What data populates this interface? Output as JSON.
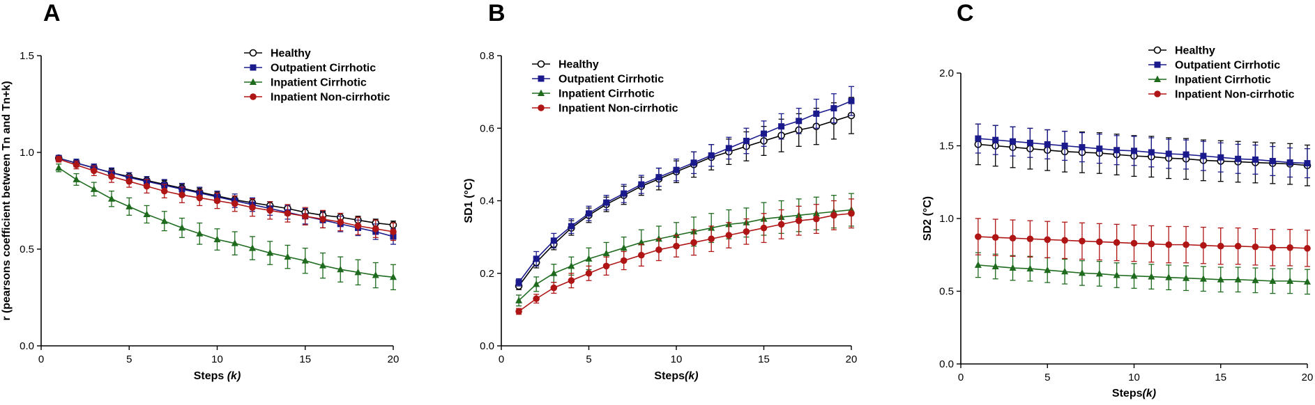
{
  "colors": {
    "Healthy": "#000000",
    "Outpatient Cirrhotic": "#1a1a8c",
    "Inpatient Cirrhotic": "#1e6b1e",
    "Inpatient Non-cirrhotic": "#b01515"
  },
  "chart_data": [
    {
      "type": "line",
      "panel": "A",
      "xlabel": "Steps",
      "xlabel_italic": "(k)",
      "ylabel": "r (pearsons coefficient between Tn and Tn+k)",
      "xlim": [
        0,
        20
      ],
      "ylim": [
        0,
        1.5
      ],
      "xticks": [
        0,
        5,
        10,
        15,
        20
      ],
      "yticks": [
        "0.0",
        "0.5",
        "1.0",
        "1.5"
      ],
      "legend": "top-right",
      "x": [
        1,
        2,
        3,
        4,
        5,
        6,
        7,
        8,
        9,
        10,
        11,
        12,
        13,
        14,
        15,
        16,
        17,
        18,
        19,
        20
      ],
      "series": [
        {
          "name": "Healthy",
          "marker": "open-circle",
          "values": [
            0.97,
            0.945,
            0.92,
            0.895,
            0.875,
            0.855,
            0.835,
            0.815,
            0.795,
            0.775,
            0.755,
            0.74,
            0.725,
            0.71,
            0.69,
            0.675,
            0.665,
            0.65,
            0.635,
            0.625
          ],
          "err": [
            0.015,
            0.02,
            0.02,
            0.02,
            0.02,
            0.02,
            0.02,
            0.02,
            0.02,
            0.02,
            0.02,
            0.02,
            0.02,
            0.02,
            0.02,
            0.02,
            0.02,
            0.02,
            0.02,
            0.02
          ]
        },
        {
          "name": "Outpatient Cirrhotic",
          "marker": "square",
          "values": [
            0.97,
            0.945,
            0.92,
            0.895,
            0.87,
            0.85,
            0.83,
            0.81,
            0.79,
            0.77,
            0.75,
            0.73,
            0.71,
            0.69,
            0.67,
            0.65,
            0.63,
            0.61,
            0.59,
            0.565
          ],
          "err": [
            0.015,
            0.02,
            0.02,
            0.025,
            0.025,
            0.025,
            0.03,
            0.03,
            0.03,
            0.03,
            0.035,
            0.035,
            0.035,
            0.035,
            0.04,
            0.04,
            0.04,
            0.04,
            0.04,
            0.04
          ]
        },
        {
          "name": "Inpatient Cirrhotic",
          "marker": "triangle",
          "values": [
            0.92,
            0.86,
            0.81,
            0.76,
            0.72,
            0.68,
            0.645,
            0.61,
            0.58,
            0.55,
            0.53,
            0.505,
            0.48,
            0.46,
            0.44,
            0.415,
            0.395,
            0.38,
            0.365,
            0.355
          ],
          "err": [
            0.02,
            0.03,
            0.035,
            0.04,
            0.045,
            0.045,
            0.05,
            0.05,
            0.055,
            0.055,
            0.06,
            0.06,
            0.06,
            0.06,
            0.065,
            0.065,
            0.065,
            0.065,
            0.065,
            0.065
          ]
        },
        {
          "name": "Inpatient Non-cirrhotic",
          "marker": "circle",
          "values": [
            0.965,
            0.935,
            0.905,
            0.875,
            0.85,
            0.825,
            0.8,
            0.78,
            0.765,
            0.75,
            0.735,
            0.715,
            0.7,
            0.685,
            0.67,
            0.655,
            0.64,
            0.62,
            0.605,
            0.59
          ],
          "err": [
            0.015,
            0.02,
            0.025,
            0.03,
            0.03,
            0.035,
            0.035,
            0.04,
            0.04,
            0.04,
            0.04,
            0.045,
            0.045,
            0.045,
            0.045,
            0.045,
            0.045,
            0.045,
            0.045,
            0.045
          ]
        }
      ]
    },
    {
      "type": "line",
      "panel": "B",
      "xlabel": "Steps",
      "xlabel_italic": "(k)",
      "ylabel": "SD1 (°C)",
      "xlim": [
        0,
        20
      ],
      "ylim": [
        0,
        0.8
      ],
      "xticks": [
        0,
        5,
        10,
        15,
        20
      ],
      "yticks": [
        "0.0",
        "0.2",
        "0.4",
        "0.6",
        "0.8"
      ],
      "legend": "top-left",
      "x": [
        1,
        2,
        3,
        4,
        5,
        6,
        7,
        8,
        9,
        10,
        11,
        12,
        13,
        14,
        15,
        16,
        17,
        18,
        19,
        20
      ],
      "series": [
        {
          "name": "Healthy",
          "marker": "open-circle",
          "values": [
            0.165,
            0.23,
            0.28,
            0.325,
            0.36,
            0.39,
            0.415,
            0.44,
            0.46,
            0.48,
            0.5,
            0.52,
            0.535,
            0.55,
            0.565,
            0.58,
            0.595,
            0.605,
            0.62,
            0.635
          ],
          "err": [
            0.01,
            0.015,
            0.015,
            0.02,
            0.02,
            0.02,
            0.025,
            0.025,
            0.03,
            0.03,
            0.035,
            0.035,
            0.035,
            0.04,
            0.04,
            0.045,
            0.045,
            0.05,
            0.05,
            0.05
          ]
        },
        {
          "name": "Outpatient Cirrhotic",
          "marker": "square",
          "values": [
            0.175,
            0.24,
            0.29,
            0.33,
            0.365,
            0.395,
            0.42,
            0.445,
            0.465,
            0.485,
            0.505,
            0.525,
            0.545,
            0.565,
            0.585,
            0.605,
            0.62,
            0.64,
            0.655,
            0.675
          ],
          "err": [
            0.01,
            0.02,
            0.02,
            0.02,
            0.02,
            0.02,
            0.025,
            0.025,
            0.025,
            0.03,
            0.03,
            0.03,
            0.03,
            0.035,
            0.035,
            0.035,
            0.035,
            0.04,
            0.04,
            0.04
          ]
        },
        {
          "name": "Inpatient Cirrhotic",
          "marker": "triangle",
          "values": [
            0.125,
            0.17,
            0.2,
            0.22,
            0.24,
            0.255,
            0.27,
            0.285,
            0.295,
            0.305,
            0.315,
            0.325,
            0.335,
            0.34,
            0.35,
            0.355,
            0.36,
            0.365,
            0.37,
            0.375
          ],
          "err": [
            0.015,
            0.02,
            0.025,
            0.025,
            0.03,
            0.03,
            0.03,
            0.035,
            0.035,
            0.035,
            0.04,
            0.04,
            0.04,
            0.04,
            0.045,
            0.045,
            0.045,
            0.045,
            0.045,
            0.045
          ]
        },
        {
          "name": "Inpatient Non-cirrhotic",
          "marker": "circle",
          "values": [
            0.095,
            0.13,
            0.16,
            0.18,
            0.2,
            0.22,
            0.235,
            0.25,
            0.265,
            0.275,
            0.285,
            0.295,
            0.305,
            0.315,
            0.325,
            0.335,
            0.345,
            0.35,
            0.36,
            0.365
          ],
          "err": [
            0.008,
            0.012,
            0.015,
            0.02,
            0.02,
            0.025,
            0.025,
            0.03,
            0.03,
            0.03,
            0.035,
            0.035,
            0.035,
            0.035,
            0.04,
            0.04,
            0.04,
            0.04,
            0.04,
            0.04
          ]
        }
      ]
    },
    {
      "type": "line",
      "panel": "C",
      "xlabel": "Steps",
      "xlabel_italic": "(k)",
      "ylabel": "SD2 (°C)",
      "xlim": [
        0,
        20
      ],
      "ylim": [
        0,
        2.0
      ],
      "xticks": [
        0,
        5,
        10,
        15,
        20
      ],
      "yticks": [
        "0.0",
        "0.5",
        "1.0",
        "1.5",
        "2.0"
      ],
      "legend": "top-right",
      "x": [
        1,
        2,
        3,
        4,
        5,
        6,
        7,
        8,
        9,
        10,
        11,
        12,
        13,
        14,
        15,
        16,
        17,
        18,
        19,
        20
      ],
      "series": [
        {
          "name": "Healthy",
          "marker": "open-circle",
          "values": [
            1.51,
            1.5,
            1.49,
            1.48,
            1.47,
            1.46,
            1.455,
            1.45,
            1.44,
            1.43,
            1.425,
            1.415,
            1.41,
            1.4,
            1.395,
            1.39,
            1.385,
            1.38,
            1.375,
            1.365
          ],
          "err": [
            0.14,
            0.14,
            0.14,
            0.14,
            0.14,
            0.14,
            0.14,
            0.14,
            0.14,
            0.14,
            0.14,
            0.14,
            0.14,
            0.14,
            0.14,
            0.14,
            0.14,
            0.14,
            0.14,
            0.14
          ]
        },
        {
          "name": "Outpatient Cirrhotic",
          "marker": "square",
          "values": [
            1.55,
            1.54,
            1.53,
            1.52,
            1.51,
            1.5,
            1.49,
            1.48,
            1.47,
            1.465,
            1.455,
            1.445,
            1.44,
            1.43,
            1.42,
            1.41,
            1.405,
            1.395,
            1.385,
            1.38
          ],
          "err": [
            0.1,
            0.1,
            0.1,
            0.1,
            0.1,
            0.1,
            0.1,
            0.1,
            0.1,
            0.1,
            0.1,
            0.1,
            0.1,
            0.1,
            0.1,
            0.1,
            0.1,
            0.1,
            0.1,
            0.1
          ]
        },
        {
          "name": "Inpatient Cirrhotic",
          "marker": "triangle",
          "values": [
            0.68,
            0.67,
            0.66,
            0.655,
            0.645,
            0.635,
            0.625,
            0.62,
            0.61,
            0.605,
            0.6,
            0.595,
            0.59,
            0.585,
            0.58,
            0.58,
            0.575,
            0.57,
            0.57,
            0.565
          ],
          "err": [
            0.085,
            0.085,
            0.085,
            0.085,
            0.085,
            0.085,
            0.085,
            0.085,
            0.085,
            0.085,
            0.085,
            0.085,
            0.085,
            0.085,
            0.085,
            0.085,
            0.085,
            0.085,
            0.085,
            0.085
          ]
        },
        {
          "name": "Inpatient Non-cirrhotic",
          "marker": "circle",
          "values": [
            0.875,
            0.87,
            0.865,
            0.86,
            0.855,
            0.85,
            0.845,
            0.84,
            0.835,
            0.83,
            0.825,
            0.82,
            0.82,
            0.815,
            0.81,
            0.81,
            0.805,
            0.8,
            0.8,
            0.795
          ],
          "err": [
            0.125,
            0.125,
            0.125,
            0.125,
            0.125,
            0.125,
            0.125,
            0.125,
            0.125,
            0.125,
            0.125,
            0.125,
            0.125,
            0.125,
            0.125,
            0.125,
            0.125,
            0.125,
            0.125,
            0.125
          ]
        }
      ]
    }
  ]
}
